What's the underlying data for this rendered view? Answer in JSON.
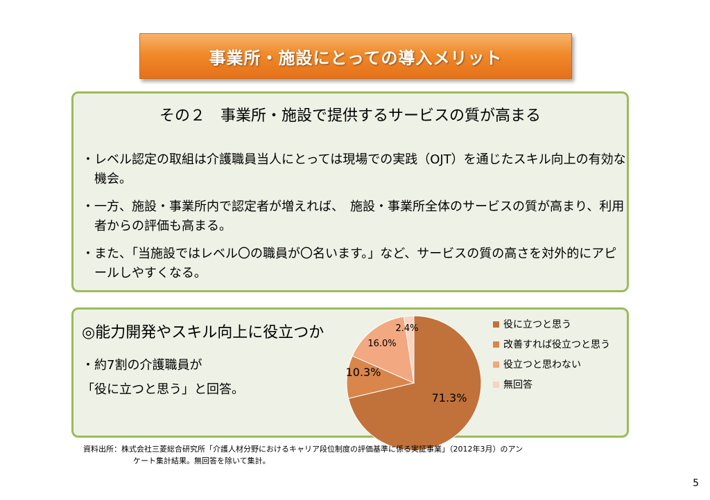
{
  "title": "事業所・施設にとっての導入メリット",
  "box1": {
    "heading": "その２　事業所・施設で提供するサービスの質が高まる",
    "bullets": [
      "・レベル認定の取組は介護職員当人にとっては現場での実践（OJT）を通じたスキル向上の有効な機会。",
      "・一方、施設・事業所内で認定者が増えれば、　施設・事業所全体のサービスの質が高まり、利用者からの評価も高まる。",
      "・また、「当施設ではレベル〇の職員が〇名います。」など、サービスの質の高さを対外的にアピールしやすくなる。"
    ]
  },
  "box2": {
    "heading": "◎能力開発やスキル向上に役立つか",
    "line1": "・約7割の介護職員が",
    "line2": "「役に立つと思う」と回答。"
  },
  "chart_data": {
    "type": "pie",
    "categories": [
      "役に立つと思う",
      "改善すれば役立つと思う",
      "役立つと思わない",
      "無回答"
    ],
    "values": [
      71.3,
      10.3,
      16.0,
      2.4
    ],
    "value_labels": [
      "71.3%",
      "10.3%",
      "16.0%",
      "2.4%"
    ],
    "colors": [
      "#c0723a",
      "#d9864c",
      "#f2a880",
      "#f8d3c0"
    ],
    "legend_position": "right"
  },
  "source": {
    "line1": "資料出所：株式会社三菱総合研究所「介護人材分野におけるキャリア段位制度の評価基準に係る実証事業」（2012年3月）のアン",
    "line2": "ケート集計結果。無回答を除いて集計。"
  },
  "page_number": "5"
}
